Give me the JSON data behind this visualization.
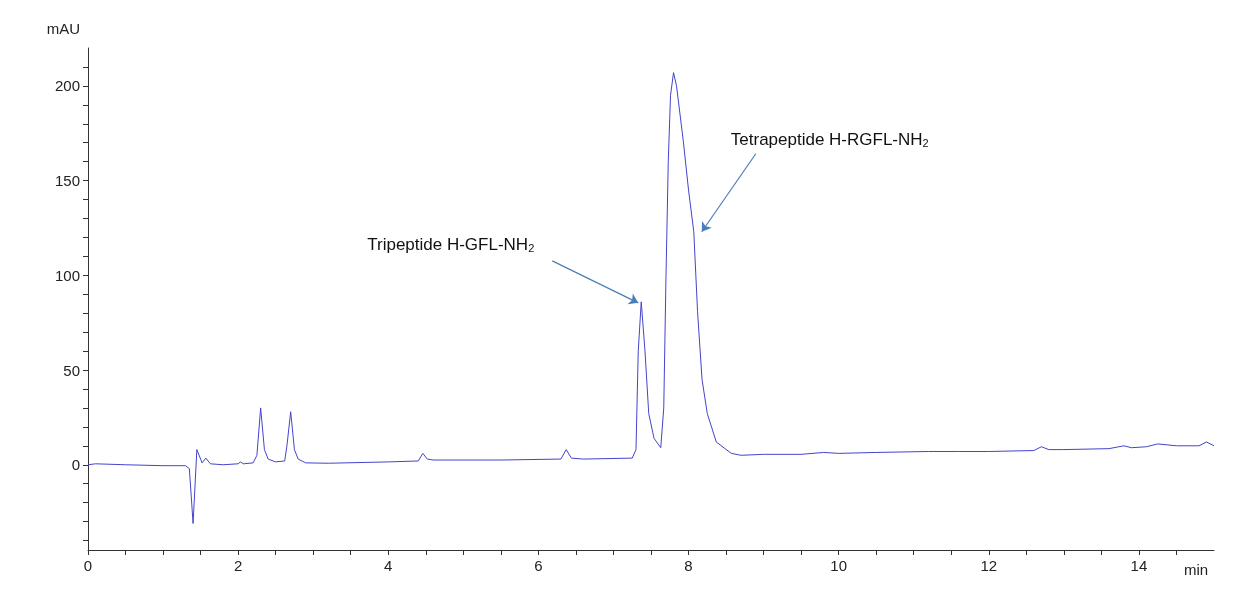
{
  "chart_data": {
    "type": "line",
    "xlabel": "min",
    "ylabel": "mAU",
    "xlim": [
      0,
      15
    ],
    "ylim": [
      -45,
      220
    ],
    "xticks": [
      0,
      {
        "value": 0.5,
        "label": null
      },
      {
        "value": 1,
        "label": null
      },
      {
        "value": 1.5,
        "label": null
      },
      2,
      {
        "value": 2.5,
        "label": null
      },
      {
        "value": 3,
        "label": null
      },
      {
        "value": 3.5,
        "label": null
      },
      4,
      {
        "value": 4.5,
        "label": null
      },
      {
        "value": 5,
        "label": null
      },
      {
        "value": 5.5,
        "label": null
      },
      6,
      {
        "value": 6.5,
        "label": null
      },
      {
        "value": 7,
        "label": null
      },
      {
        "value": 7.5,
        "label": null
      },
      8,
      {
        "value": 8.5,
        "label": null
      },
      {
        "value": 9,
        "label": null
      },
      {
        "value": 9.5,
        "label": null
      },
      10,
      {
        "value": 10.5,
        "label": null
      },
      {
        "value": 11,
        "label": null
      },
      {
        "value": 11.5,
        "label": null
      },
      12,
      {
        "value": 12.5,
        "label": null
      },
      {
        "value": 13,
        "label": null
      },
      {
        "value": 13.5,
        "label": null
      },
      14,
      {
        "value": 14.5,
        "label": null
      }
    ],
    "yticks": [
      {
        "value": -40,
        "label": null
      },
      {
        "value": -30,
        "label": null
      },
      {
        "value": -20,
        "label": null
      },
      {
        "value": -10,
        "label": null
      },
      0,
      {
        "value": 10,
        "label": null
      },
      {
        "value": 20,
        "label": null
      },
      {
        "value": 30,
        "label": null
      },
      {
        "value": 40,
        "label": null
      },
      50,
      {
        "value": 60,
        "label": null
      },
      {
        "value": 70,
        "label": null
      },
      {
        "value": 80,
        "label": null
      },
      {
        "value": 90,
        "label": null
      },
      100,
      {
        "value": 110,
        "label": null
      },
      {
        "value": 120,
        "label": null
      },
      {
        "value": 130,
        "label": null
      },
      {
        "value": 140,
        "label": null
      },
      150,
      {
        "value": 160,
        "label": null
      },
      {
        "value": 170,
        "label": null
      },
      {
        "value": 180,
        "label": null
      },
      {
        "value": 190,
        "label": null
      },
      200,
      {
        "value": 210,
        "label": null
      }
    ],
    "grid": false,
    "legend": false,
    "marker": "none",
    "line_style": "solid",
    "series": [
      {
        "color": "#4444cc",
        "x": [
          0,
          0.1,
          0.5,
          1.0,
          1.3,
          1.35,
          1.4,
          1.45,
          1.52,
          1.57,
          1.63,
          1.8,
          2.0,
          2.03,
          2.07,
          2.2,
          2.25,
          2.3,
          2.35,
          2.4,
          2.5,
          2.62,
          2.65,
          2.7,
          2.75,
          2.8,
          2.9,
          3.2,
          4.0,
          4.4,
          4.46,
          4.52,
          4.6,
          5.5,
          6.3,
          6.37,
          6.44,
          6.6,
          7.25,
          7.3,
          7.33,
          7.37,
          7.42,
          7.47,
          7.54,
          7.63,
          7.67,
          7.7,
          7.73,
          7.76,
          7.8,
          7.84,
          7.93,
          8.0,
          8.07,
          8.12,
          8.18,
          8.25,
          8.37,
          8.57,
          8.7,
          9.0,
          9.5,
          9.8,
          10.0,
          10.5,
          11.2,
          11.6,
          12.0,
          12.6,
          12.7,
          12.8,
          13.0,
          13.6,
          13.8,
          13.9,
          14.1,
          14.25,
          14.5,
          14.8,
          14.9,
          15.0
        ],
        "values": [
          0,
          0.5,
          0,
          -0.5,
          -0.5,
          -2,
          -31,
          8,
          1,
          3.5,
          0.5,
          0,
          0.5,
          1.5,
          0.5,
          1,
          5,
          30,
          8,
          3,
          1.5,
          2,
          10,
          28,
          8,
          3,
          1,
          0.8,
          1.5,
          2,
          6,
          3,
          2.5,
          2.5,
          3,
          8,
          3.5,
          3,
          3.5,
          8,
          60,
          86,
          60,
          27,
          14,
          9,
          30,
          100,
          160,
          195,
          207,
          200,
          171,
          145,
          123,
          81,
          45,
          27,
          12,
          6,
          5,
          5.5,
          5.5,
          6.5,
          6,
          6.5,
          7,
          7,
          7,
          7.5,
          9.5,
          8,
          8,
          8.5,
          10,
          9,
          9.5,
          11,
          10,
          10,
          12,
          10
        ]
      }
    ],
    "annotations": [
      {
        "text": "Tripeptide H-GFL-NH$_{2}$",
        "x": 7.37,
        "y": 86
      },
      {
        "text": "Tetrapeptide H-RGFL-NH$_{2}$",
        "x": 8.07,
        "y": 123
      }
    ]
  }
}
